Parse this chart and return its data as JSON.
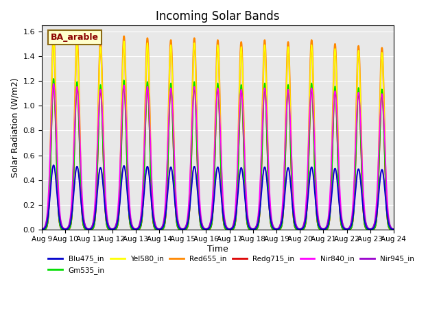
{
  "title": "Incoming Solar Bands",
  "xlabel": "Time",
  "ylabel": "Solar Radiation (W/m2)",
  "annotation": "BA_arable",
  "num_days": 15,
  "ylim": [
    0,
    1.65
  ],
  "yticks": [
    0.0,
    0.2,
    0.4,
    0.6,
    0.8,
    1.0,
    1.2,
    1.4,
    1.6
  ],
  "series": {
    "Blu475_in": {
      "color": "#0000cc",
      "lw": 1.2
    },
    "Gm535_in": {
      "color": "#00dd00",
      "lw": 1.2
    },
    "Yel580_in": {
      "color": "#ffff00",
      "lw": 1.2
    },
    "Red655_in": {
      "color": "#ff8800",
      "lw": 1.8
    },
    "Redg715_in": {
      "color": "#dd0000",
      "lw": 1.2
    },
    "Nir840_in": {
      "color": "#ff00ff",
      "lw": 1.2
    },
    "Nir945_in": {
      "color": "#9900cc",
      "lw": 1.2
    }
  },
  "peak_heights": {
    "Blu475_in": 0.52,
    "Gm535_in": 1.22,
    "Yel580_in": 1.54,
    "Red655_in": 1.58,
    "Redg715_in": 1.18,
    "Nir840_in": 1.18,
    "Nir945_in": 0.52
  },
  "bell_width": {
    "Blu475_in": 0.13,
    "Gm535_in": 0.1,
    "Yel580_in": 0.1,
    "Red655_in": 0.1,
    "Redg715_in": 0.1,
    "Nir840_in": 0.13,
    "Nir945_in": 0.15
  },
  "peak_variation": [
    1.0,
    0.98,
    0.96,
    0.99,
    0.98,
    0.97,
    0.98,
    0.97,
    0.96,
    0.97,
    0.96,
    0.97,
    0.95,
    0.94,
    0.93
  ],
  "background_color": "#e8e8e8",
  "plot_order": [
    "Red655_in",
    "Yel580_in",
    "Redg715_in",
    "Gm535_in",
    "Nir840_in",
    "Nir945_in",
    "Blu475_in"
  ],
  "legend_order": [
    "Blu475_in",
    "Gm535_in",
    "Yel580_in",
    "Red655_in",
    "Redg715_in",
    "Nir840_in",
    "Nir945_in"
  ]
}
